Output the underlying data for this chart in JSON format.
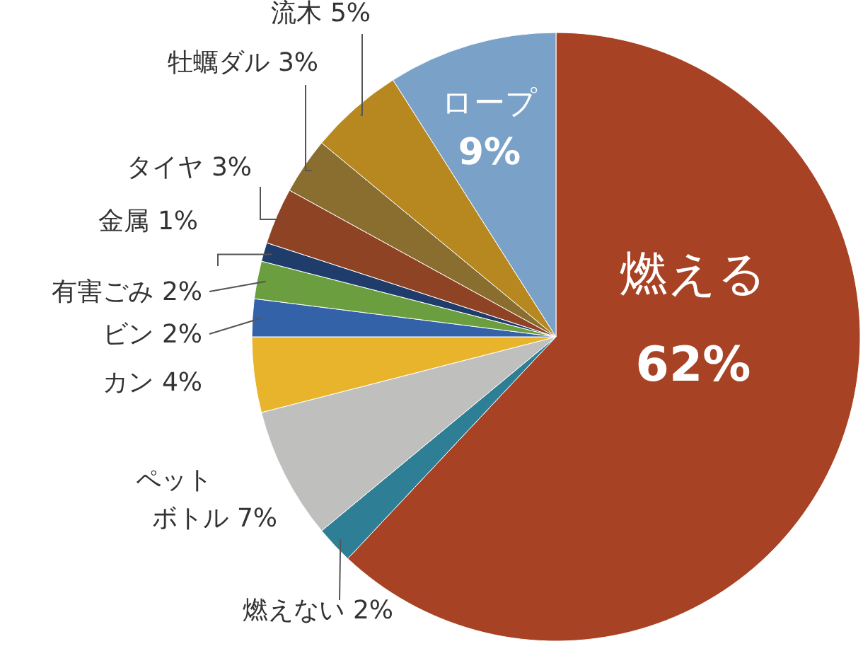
{
  "chart_data": {
    "type": "pie",
    "categories": [
      "燃える",
      "燃えない",
      "ペットボトル",
      "カン",
      "ビン",
      "有害ごみ",
      "金属",
      "タイヤ",
      "牡蠣ダル",
      "流木",
      "ロープ"
    ],
    "values": [
      62,
      2,
      7,
      4,
      2,
      2,
      1,
      3,
      3,
      5,
      9
    ],
    "colors": [
      "#a84224",
      "#2e7f96",
      "#bfc0be",
      "#e8b42c",
      "#3462a8",
      "#6a9e3e",
      "#1f3c6a",
      "#8e4424",
      "#8a6e30",
      "#b88820",
      "#7aa2c8"
    ],
    "value_labels": [
      "62%",
      "2%",
      "7%",
      "4%",
      "2%",
      "2%",
      "1%",
      "3%",
      "3%",
      "5%",
      "9%"
    ]
  }
}
